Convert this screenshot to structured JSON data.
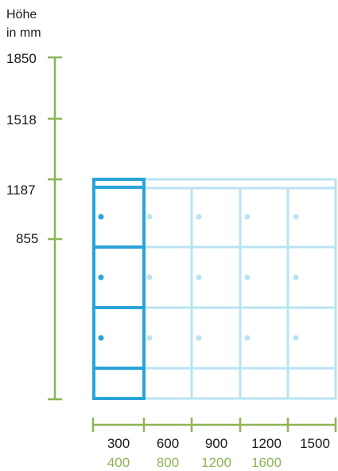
{
  "axis_title_line1": "Höhe",
  "axis_title_line2": "in mm",
  "height_ticks": [
    "1850",
    "1518",
    "1187",
    "855"
  ],
  "width_ticks_primary": [
    "300",
    "600",
    "900",
    "1200",
    "1500"
  ],
  "width_ticks_secondary": [
    "400",
    "800",
    "1200",
    "1600"
  ],
  "colors": {
    "axis": "#8cb455",
    "highlight": "#2aa4d8",
    "cabinet": "#b9e4f4",
    "text": "#1a1a1a",
    "secondary_text": "#8cb455"
  }
}
